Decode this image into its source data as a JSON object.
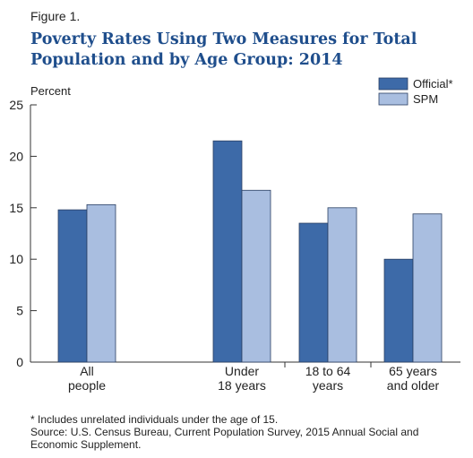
{
  "figure_label": "Figure 1.",
  "chart_data": {
    "type": "bar",
    "title": "Poverty Rates Using Two Measures for Total Population and by Age Group: 2014",
    "ylabel": "Percent",
    "xlabel": "",
    "ylim": [
      0,
      25
    ],
    "yticks": [
      0,
      5,
      10,
      15,
      20,
      25
    ],
    "grid": false,
    "legend_position": "top-right",
    "categories": [
      "All people",
      "Under 18 years",
      "18 to 64 years",
      "65 years and older"
    ],
    "category_lines": [
      [
        "All",
        "people"
      ],
      [
        "Under",
        "18 years"
      ],
      [
        "18 to 64",
        "years"
      ],
      [
        "65 years",
        "and older"
      ]
    ],
    "series": [
      {
        "name": "Official*",
        "color": "#3d6aa8",
        "values": [
          14.8,
          21.5,
          13.5,
          10.0
        ]
      },
      {
        "name": "SPM",
        "color": "#a9bee0",
        "values": [
          15.3,
          16.7,
          15.0,
          14.4
        ]
      }
    ]
  },
  "footnotes": [
    "* Includes unrelated individuals under the age of 15.",
    "Source: U.S. Census Bureau, Current Population Survey, 2015 Annual Social and Economic Supplement."
  ]
}
